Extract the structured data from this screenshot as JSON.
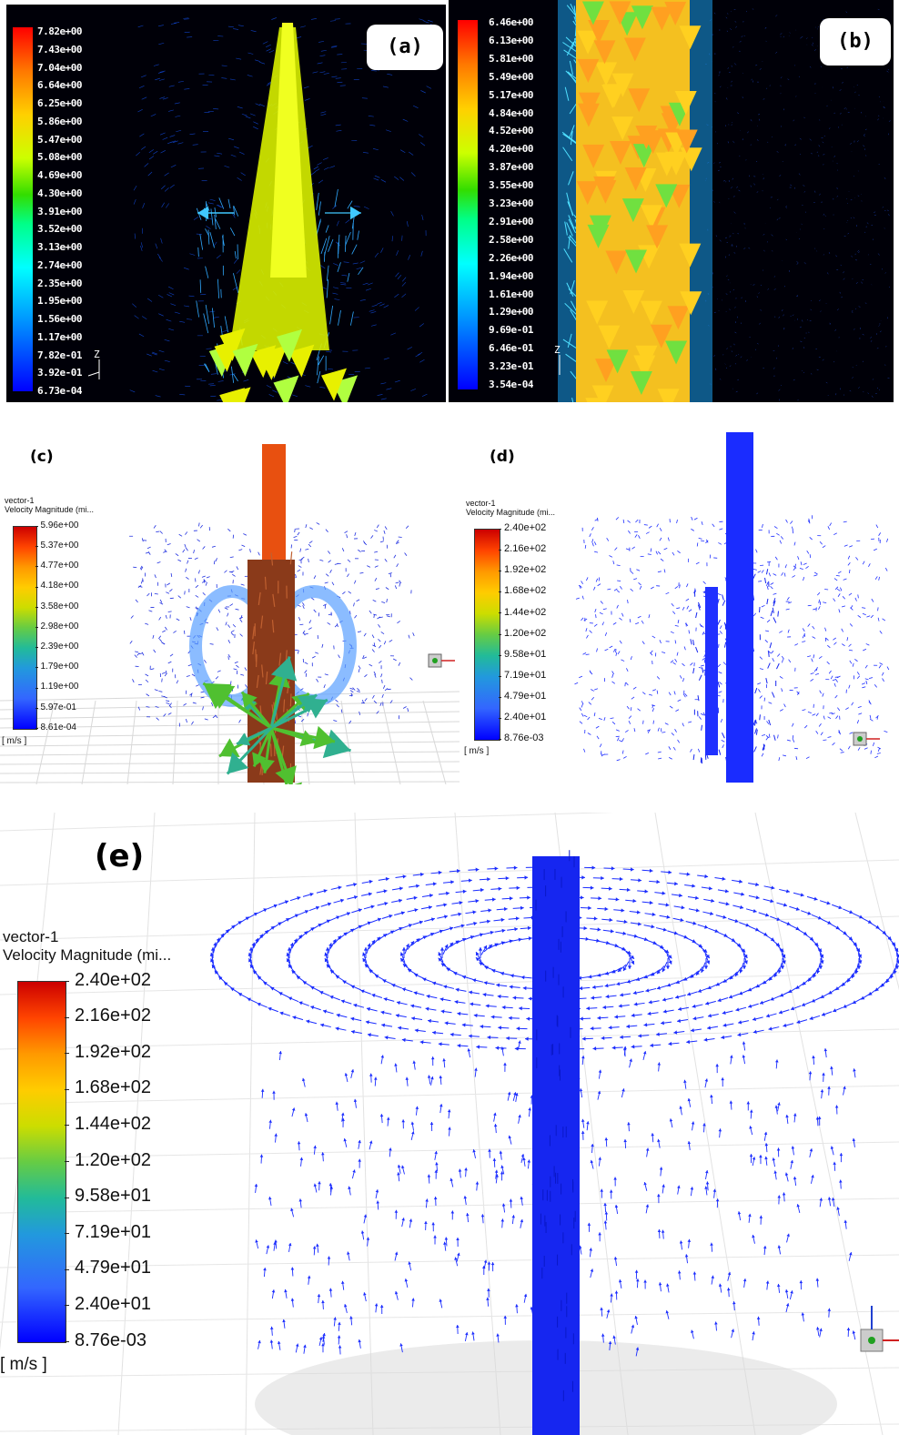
{
  "panels": {
    "a": {
      "label": "(a)",
      "legend_ticks": [
        "7.82e+00",
        "7.43e+00",
        "7.04e+00",
        "6.64e+00",
        "6.25e+00",
        "5.86e+00",
        "5.47e+00",
        "5.08e+00",
        "4.69e+00",
        "4.30e+00",
        "3.91e+00",
        "3.52e+00",
        "3.13e+00",
        "2.74e+00",
        "2.35e+00",
        "1.95e+00",
        "1.56e+00",
        "1.17e+00",
        "7.82e-01",
        "3.92e-01",
        "6.73e-04"
      ],
      "axis_label": "Z"
    },
    "b": {
      "label": "(b)",
      "legend_ticks": [
        "6.46e+00",
        "6.13e+00",
        "5.81e+00",
        "5.49e+00",
        "5.17e+00",
        "4.84e+00",
        "4.52e+00",
        "4.20e+00",
        "3.87e+00",
        "3.55e+00",
        "3.23e+00",
        "2.91e+00",
        "2.58e+00",
        "2.26e+00",
        "1.94e+00",
        "1.61e+00",
        "1.29e+00",
        "9.69e-01",
        "6.46e-01",
        "3.23e-01",
        "3.54e-04"
      ],
      "axis_label": "Z"
    },
    "c": {
      "label": "(c)",
      "legend_title_1": "vector-1",
      "legend_title_2": "Velocity Magnitude (mi...",
      "legend_ticks": [
        "5.96e+00",
        "5.37e+00",
        "4.77e+00",
        "4.18e+00",
        "3.58e+00",
        "2.98e+00",
        "2.39e+00",
        "1.79e+00",
        "1.19e+00",
        "5.97e-01",
        "8.61e-04"
      ],
      "unit": "[ m/s ]"
    },
    "d": {
      "label": "(d)",
      "legend_title_1": "vector-1",
      "legend_title_2": "Velocity Magnitude (mi...",
      "legend_ticks": [
        "2.40e+02",
        "2.16e+02",
        "1.92e+02",
        "1.68e+02",
        "1.44e+02",
        "1.20e+02",
        "9.58e+01",
        "7.19e+01",
        "4.79e+01",
        "2.40e+01",
        "8.76e-03"
      ],
      "unit": "[ m/s ]"
    },
    "e": {
      "label": "(e)",
      "legend_title_1": "vector-1",
      "legend_title_2": "Velocity Magnitude (mi...",
      "legend_ticks": [
        "2.40e+02",
        "2.16e+02",
        "1.92e+02",
        "1.68e+02",
        "1.44e+02",
        "1.20e+02",
        "9.58e+01",
        "7.19e+01",
        "4.79e+01",
        "2.40e+01",
        "8.76e-03"
      ],
      "unit": "[ m/s ]"
    }
  },
  "colors": {
    "vector_blue": "#1030ff",
    "jet_yellow": "#e8f000",
    "jet_orange": "#ff9a10",
    "jet_cyan": "#30a0ff",
    "jet_red_brown": "#a0401a"
  }
}
